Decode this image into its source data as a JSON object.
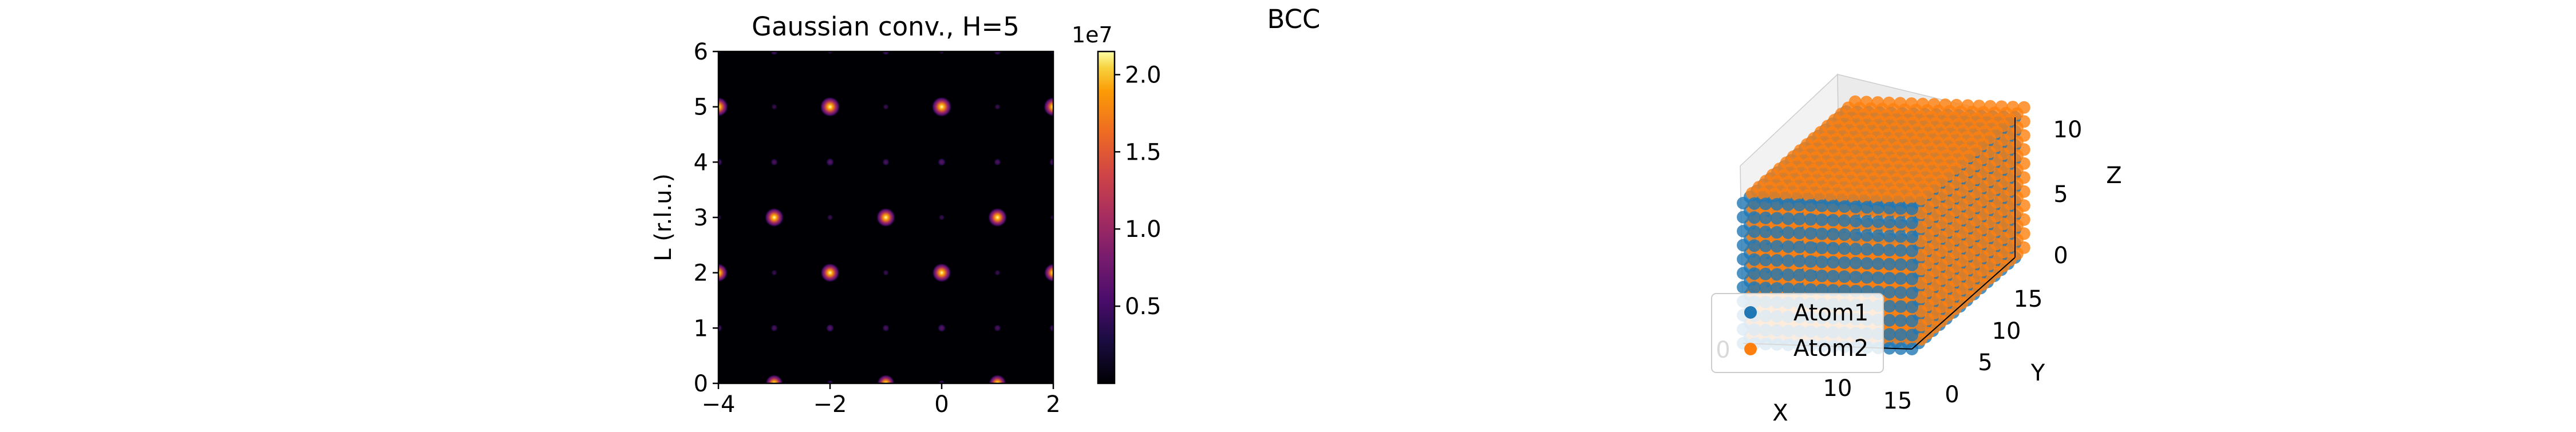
{
  "figure": {
    "suptitle": "BCC"
  },
  "chart_data": [
    {
      "type": "heatmap",
      "title": "Gaussian conv., H=5",
      "xlabel": "",
      "ylabel": "L (r.l.u.)",
      "xlim": [
        -4,
        2
      ],
      "ylim": [
        0,
        6
      ],
      "xticks": [
        -4,
        -2,
        0,
        2
      ],
      "yticks": [
        0,
        1,
        2,
        3,
        4,
        5,
        6
      ],
      "xtick_labels": [
        "−4",
        "−2",
        "0",
        "2"
      ],
      "ytick_labels": [
        "0",
        "1",
        "2",
        "3",
        "4",
        "5",
        "6"
      ],
      "colormap": "inferno",
      "background_color": "#000004",
      "peaks": [
        {
          "k": -4,
          "l": 5,
          "intensity": 0.95
        },
        {
          "k": -2,
          "l": 5,
          "intensity": 1.0
        },
        {
          "k": 0,
          "l": 5,
          "intensity": 1.0
        },
        {
          "k": 2,
          "l": 5,
          "intensity": 0.95
        },
        {
          "k": -3,
          "l": 3,
          "intensity": 0.9
        },
        {
          "k": -1,
          "l": 3,
          "intensity": 0.9
        },
        {
          "k": 1,
          "l": 3,
          "intensity": 0.9
        },
        {
          "k": -4,
          "l": 2,
          "intensity": 0.85
        },
        {
          "k": -2,
          "l": 2,
          "intensity": 0.9
        },
        {
          "k": 0,
          "l": 2,
          "intensity": 0.9
        },
        {
          "k": 2,
          "l": 2,
          "intensity": 0.85
        },
        {
          "k": -3,
          "l": 0,
          "intensity": 0.75
        },
        {
          "k": -1,
          "l": 0,
          "intensity": 0.75
        },
        {
          "k": 1,
          "l": 0,
          "intensity": 0.75
        },
        {
          "k": -3,
          "l": 6,
          "intensity": 0.4
        },
        {
          "k": -1,
          "l": 6,
          "intensity": 0.4
        },
        {
          "k": 1,
          "l": 6,
          "intensity": 0.4
        },
        {
          "k": -4,
          "l": 4,
          "intensity": 0.45
        },
        {
          "k": -3,
          "l": 4,
          "intensity": 0.35
        },
        {
          "k": -2,
          "l": 4,
          "intensity": 0.45
        },
        {
          "k": -1,
          "l": 4,
          "intensity": 0.35
        },
        {
          "k": 0,
          "l": 4,
          "intensity": 0.45
        },
        {
          "k": 1,
          "l": 4,
          "intensity": 0.35
        },
        {
          "k": 2,
          "l": 4,
          "intensity": 0.45
        },
        {
          "k": -4,
          "l": 1,
          "intensity": 0.4
        },
        {
          "k": -3,
          "l": 1,
          "intensity": 0.35
        },
        {
          "k": -2,
          "l": 1,
          "intensity": 0.45
        },
        {
          "k": -1,
          "l": 1,
          "intensity": 0.35
        },
        {
          "k": 0,
          "l": 1,
          "intensity": 0.45
        },
        {
          "k": 1,
          "l": 1,
          "intensity": 0.35
        },
        {
          "k": 2,
          "l": 1,
          "intensity": 0.4
        },
        {
          "k": -2,
          "l": 0,
          "intensity": 0.3
        },
        {
          "k": 0,
          "l": 0,
          "intensity": 0.3
        },
        {
          "k": -3,
          "l": 5,
          "intensity": 0.2
        },
        {
          "k": -1,
          "l": 5,
          "intensity": 0.2
        },
        {
          "k": 1,
          "l": 5,
          "intensity": 0.2
        },
        {
          "k": -4,
          "l": 3,
          "intensity": 0.2
        },
        {
          "k": -2,
          "l": 3,
          "intensity": 0.2
        },
        {
          "k": 0,
          "l": 3,
          "intensity": 0.2
        },
        {
          "k": 2,
          "l": 3,
          "intensity": 0.2
        },
        {
          "k": -3,
          "l": 2,
          "intensity": 0.2
        },
        {
          "k": -1,
          "l": 2,
          "intensity": 0.2
        },
        {
          "k": 1,
          "l": 2,
          "intensity": 0.2
        },
        {
          "k": -4,
          "l": 6,
          "intensity": 0.15
        },
        {
          "k": -2,
          "l": 6,
          "intensity": 0.15
        },
        {
          "k": 0,
          "l": 6,
          "intensity": 0.15
        },
        {
          "k": 2,
          "l": 6,
          "intensity": 0.15
        }
      ],
      "colorbar": {
        "range": [
          0,
          21500000
        ],
        "ticks": [
          0.5,
          1.0,
          1.5,
          2.0
        ],
        "tick_labels": [
          "0.5",
          "1.0",
          "1.5",
          "2.0"
        ],
        "multiplier_label": "1e7"
      }
    },
    {
      "type": "scatter",
      "projection": "3d",
      "xlabel": "X",
      "ylabel": "Y",
      "zlabel": "Z",
      "xlim": [
        0,
        15
      ],
      "ylim": [
        0,
        15
      ],
      "zlim": [
        0,
        10
      ],
      "xtick_labels": [
        "0",
        "5",
        "10",
        "15"
      ],
      "ytick_labels": [
        "0",
        "5",
        "10",
        "15"
      ],
      "ztick_labels": [
        "0",
        "5",
        "10"
      ],
      "legend_position": "lower-left",
      "series": [
        {
          "name": "Atom1",
          "color": "#1f77b4",
          "grid": {
            "x": [
              0,
              15
            ],
            "y": [
              0,
              15
            ],
            "z": [
              0,
              10
            ],
            "step": 1
          }
        },
        {
          "name": "Atom2",
          "color": "#ff7f0e",
          "grid": {
            "x": [
              0.5,
              15.5
            ],
            "y": [
              0.5,
              15.5
            ],
            "z": [
              0.5,
              10.5
            ],
            "step": 1
          }
        }
      ]
    }
  ]
}
